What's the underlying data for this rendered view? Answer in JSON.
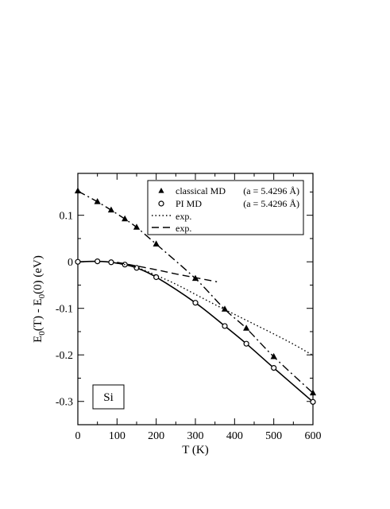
{
  "chart_data": {
    "type": "line",
    "xlabel": "T (K)",
    "ylabel": "E<sub>0</sub>(T) - E<sub>0</sub>(0)  (eV)",
    "ylabel_parts": {
      "a": "E",
      "sub1": "0",
      "b": "(T) - E",
      "sub2": "0",
      "c": "(0)  (eV)"
    },
    "xlim": [
      0,
      600
    ],
    "ylim": [
      -0.35,
      0.19
    ],
    "x_ticks": [
      0,
      100,
      200,
      300,
      400,
      500,
      600
    ],
    "x_tick_labels": [
      "0",
      "100",
      "200",
      "300",
      "400",
      "500",
      "600"
    ],
    "y_ticks": [
      -0.3,
      -0.2,
      -0.1,
      0,
      0.1
    ],
    "y_tick_labels": [
      "-0.3",
      "-0.2",
      "-0.1",
      "0",
      "0.1"
    ],
    "grid": false,
    "legend_position": "top-right",
    "panel_label": "Si",
    "series": [
      {
        "name": "classical MD",
        "param": "(a = 5.4296 Å)",
        "marker": "triangle",
        "line": "dash-dot",
        "x": [
          0,
          50,
          85,
          120,
          150,
          200,
          300,
          375,
          430,
          500,
          600
        ],
        "y": [
          0.152,
          0.129,
          0.111,
          0.092,
          0.074,
          0.038,
          -0.036,
          -0.102,
          -0.143,
          -0.204,
          -0.282
        ]
      },
      {
        "name": "PI MD",
        "param": "(a = 5.4296 Å)",
        "marker": "circle",
        "line": "solid",
        "x": [
          0,
          50,
          85,
          120,
          150,
          200,
          300,
          375,
          430,
          500,
          600
        ],
        "y": [
          0.0,
          0.001,
          -0.001,
          -0.006,
          -0.013,
          -0.033,
          -0.088,
          -0.138,
          -0.176,
          -0.228,
          -0.301
        ]
      },
      {
        "name": "exp.",
        "marker": "none",
        "line": "dotted",
        "x": [
          100,
          150,
          200,
          250,
          300,
          350,
          400,
          450,
          500,
          550,
          600
        ],
        "y": [
          -0.003,
          -0.012,
          -0.029,
          -0.048,
          -0.07,
          -0.092,
          -0.113,
          -0.134,
          -0.155,
          -0.177,
          -0.201
        ]
      },
      {
        "name": "exp.",
        "marker": "none",
        "line": "dashed",
        "x": [
          100,
          150,
          200,
          250,
          300,
          355
        ],
        "y": [
          -0.001,
          -0.009,
          -0.017,
          -0.026,
          -0.034,
          -0.043
        ]
      }
    ]
  }
}
